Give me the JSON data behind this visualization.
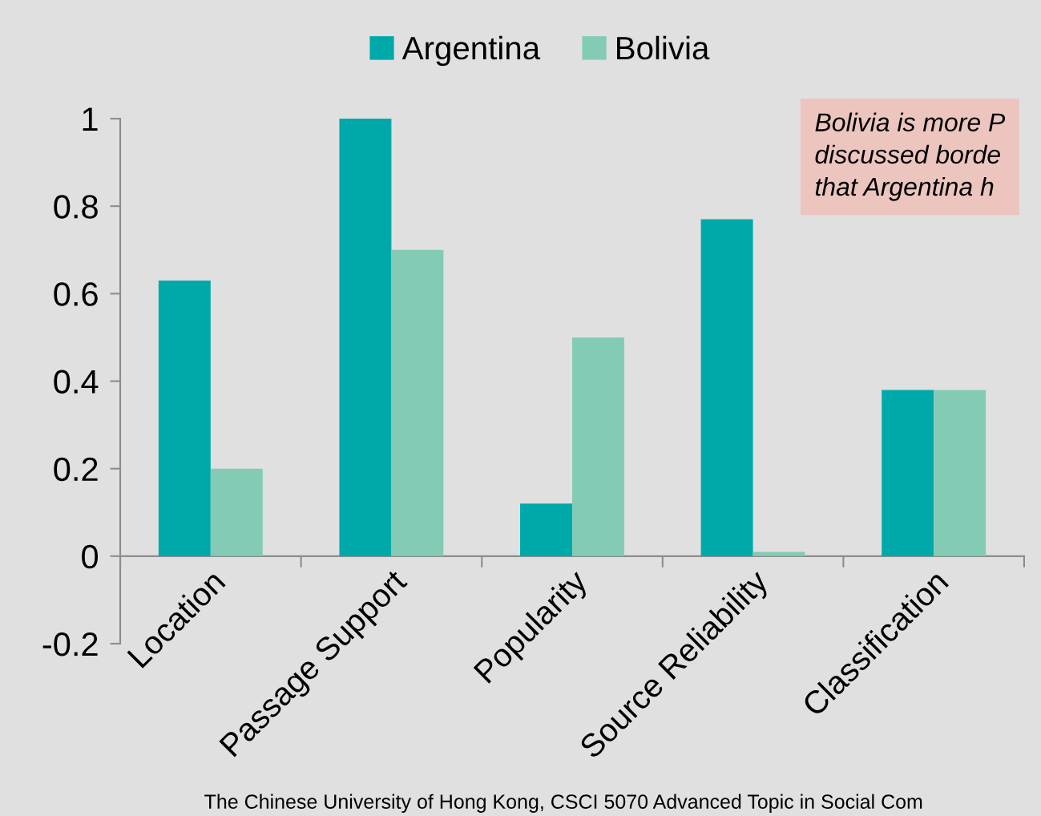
{
  "chart_data": {
    "type": "bar",
    "categories": [
      "Location",
      "Passage Support",
      "Popularity",
      "Source Reliability",
      "Classification"
    ],
    "series": [
      {
        "name": "Argentina",
        "color": "#00a9a9",
        "values": [
          0.63,
          1,
          0.12,
          0.77,
          0.38
        ]
      },
      {
        "name": "Bolivia",
        "color": "#84cbb6",
        "values": [
          0.2,
          0.7,
          0.5,
          0.01,
          0.38
        ]
      }
    ],
    "ylim": [
      -0.2,
      1
    ],
    "yticks": [
      -0.2,
      0,
      0.2,
      0.4,
      0.6,
      0.8,
      1
    ],
    "legend": "top",
    "grid": false,
    "annotations": [
      "Bolivia is more P\ndiscussed borde\nthat Argentina h",
      "The Chinese University of Hong Kong, CSCI 5070 Advanced Topic in Social Com"
    ]
  }
}
